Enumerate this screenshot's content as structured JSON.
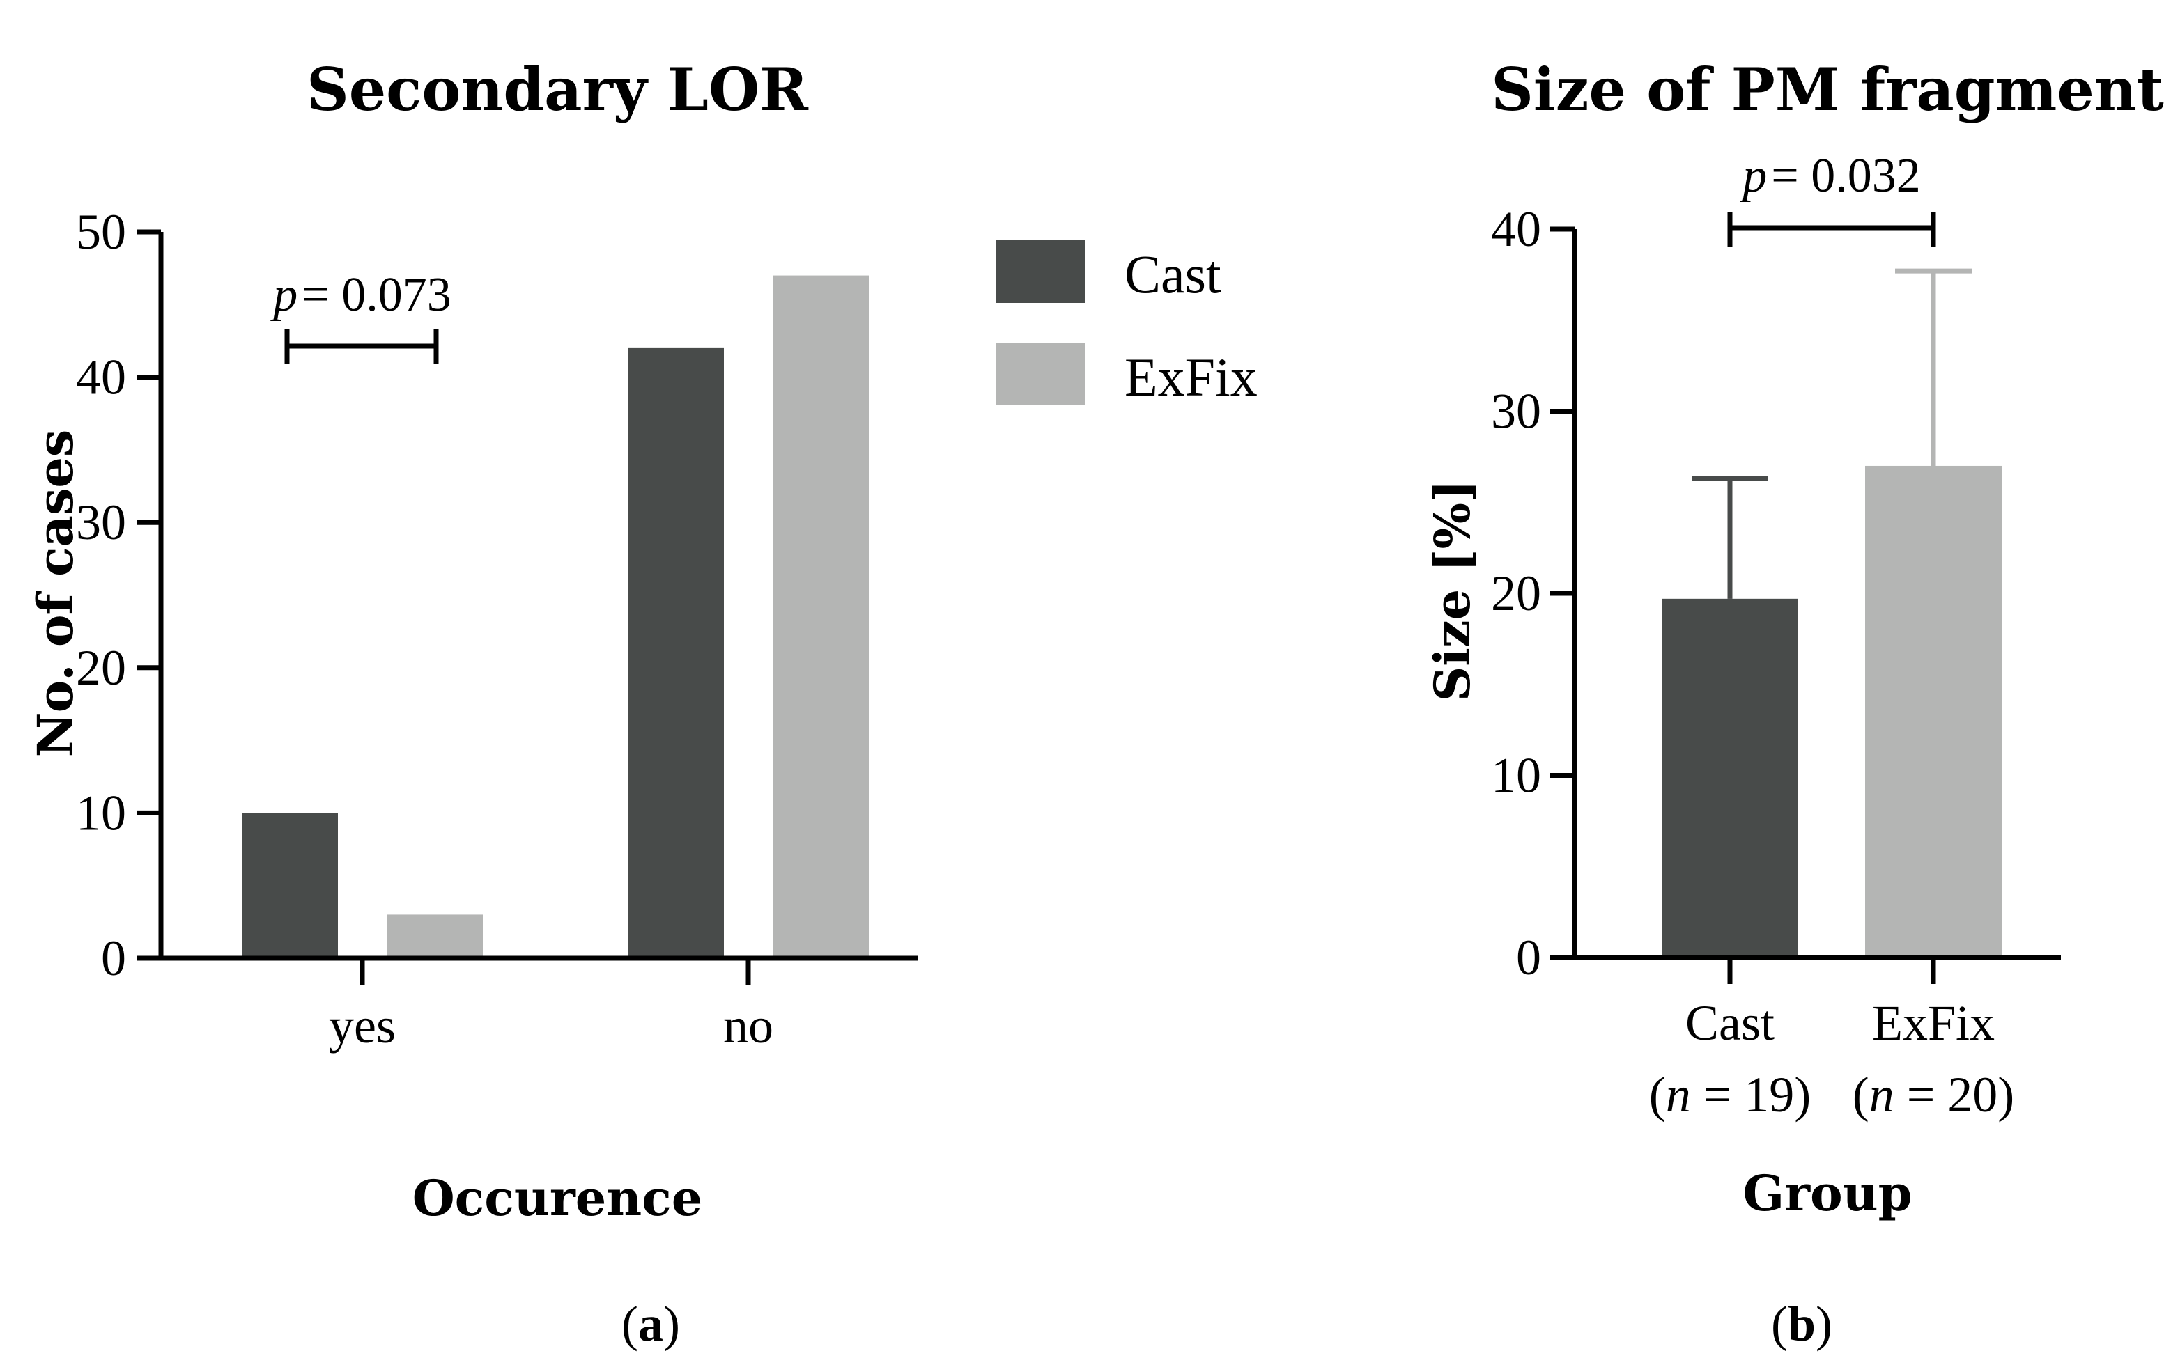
{
  "colors": {
    "cast": "#484b4a",
    "exfix": "#b4b5b4"
  },
  "chart_data": [
    {
      "type": "bar",
      "panel_label": "a",
      "title": "Secondary LOR",
      "xlabel": "Occurence",
      "ylabel": "No. of cases",
      "categories": [
        "yes",
        "no"
      ],
      "series": [
        {
          "name": "Cast",
          "values": [
            10,
            42
          ]
        },
        {
          "name": "ExFix",
          "values": [
            3,
            47
          ]
        }
      ],
      "ylim": [
        0,
        50
      ],
      "yticks": [
        "0",
        "10",
        "20",
        "30",
        "40",
        "50"
      ],
      "legend": "top-right",
      "annotation": {
        "p_symbol": "p",
        "p_text": "= 0.073",
        "between": "yes: Cast vs ExFix"
      }
    },
    {
      "type": "bar",
      "panel_label": "b",
      "title": "Size of PM fragment",
      "xlabel": "Group",
      "ylabel": "Size [%]",
      "categories": [
        "Cast",
        "ExFix"
      ],
      "category_n": [
        "19",
        "20"
      ],
      "values": [
        19.7,
        27.0
      ],
      "error_upper": [
        26.3,
        37.7
      ],
      "ylim": [
        0,
        40
      ],
      "yticks": [
        "0",
        "10",
        "20",
        "30",
        "40"
      ],
      "annotation": {
        "p_symbol": "p",
        "p_text": "= 0.032",
        "between": "Cast vs ExFix"
      }
    }
  ]
}
